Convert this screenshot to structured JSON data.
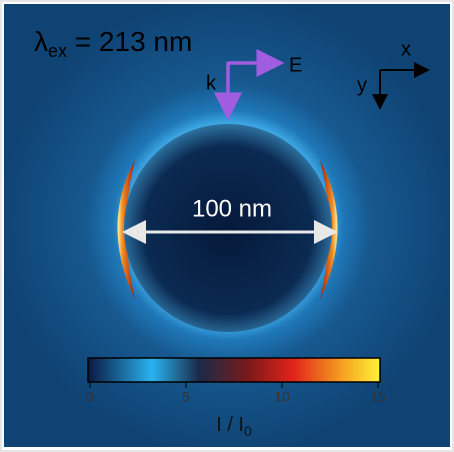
{
  "wavelength": {
    "symbol": "λ",
    "subscript": "ex",
    "text": " = 213 nm"
  },
  "polarization": {
    "k_label": "k",
    "e_label": "E"
  },
  "axes": {
    "x_label": "x",
    "y_label": "y"
  },
  "scale_bar": "100 nm",
  "colorbar": {
    "lim": [
      0,
      15
    ],
    "ticks": [
      0,
      5,
      10,
      15
    ],
    "label_main": "I / I",
    "label_sub": "0"
  }
}
